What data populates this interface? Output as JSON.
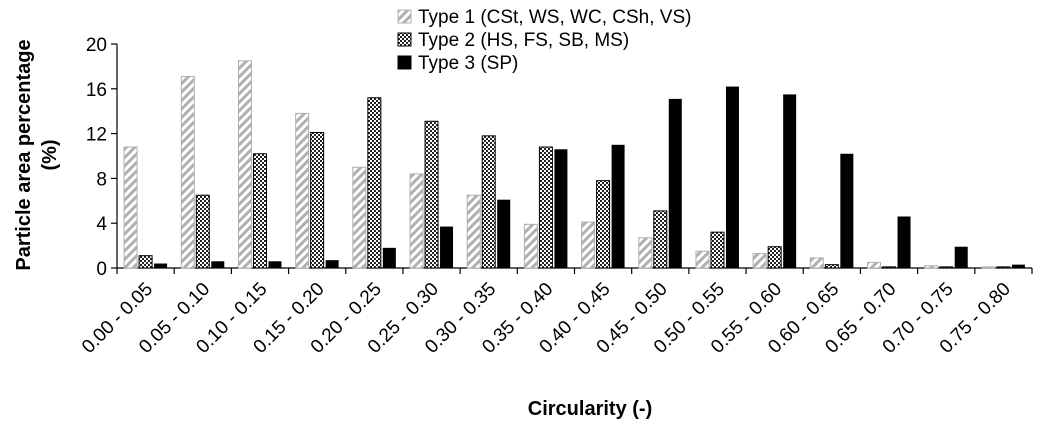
{
  "chart_data": {
    "type": "bar",
    "title": "",
    "xlabel": "Circularity (-)",
    "ylabel_line1": "Particle area percentage",
    "ylabel_line2": "(%)",
    "ylim": [
      0,
      20
    ],
    "yticks": [
      "0",
      "4",
      "8",
      "12",
      "16",
      "20"
    ],
    "ytick_values": [
      0,
      4,
      8,
      12,
      16,
      20
    ],
    "grid": false,
    "legend_position": "top-center",
    "categories": [
      "0.00 - 0.05",
      "0.05 - 0.10",
      "0.10 - 0.15",
      "0.15 - 0.20",
      "0.20 - 0.25",
      "0.25 - 0.30",
      "0.30 - 0.35",
      "0.35 - 0.40",
      "0.40 - 0.45",
      "0.45 - 0.50",
      "0.50 - 0.55",
      "0.55 - 0.60",
      "0.60 - 0.65",
      "0.65 - 0.70",
      "0.70 - 0.75",
      "0.75 - 0.80"
    ],
    "series": [
      {
        "name": "Type 1 (CSt, WS, WC, CSh, VS)",
        "pattern": "diagonal-hatch",
        "color": "#b0b0b0",
        "values": [
          10.8,
          17.1,
          18.5,
          13.8,
          9.0,
          8.4,
          6.5,
          3.9,
          4.1,
          2.7,
          1.5,
          1.3,
          0.9,
          0.5,
          0.2,
          0.1
        ]
      },
      {
        "name": "Type 2 (HS, FS, SB, MS)",
        "pattern": "dotted",
        "color": "#333333",
        "values": [
          1.1,
          6.5,
          10.2,
          12.1,
          15.2,
          13.1,
          11.8,
          10.8,
          7.8,
          5.1,
          3.2,
          1.9,
          0.3,
          0.1,
          0.1,
          0.1
        ]
      },
      {
        "name": "Type 3 (SP)",
        "pattern": "solid",
        "color": "#000000",
        "values": [
          0.4,
          0.6,
          0.6,
          0.7,
          1.8,
          3.7,
          6.1,
          10.6,
          11.0,
          15.1,
          16.2,
          15.5,
          10.2,
          4.6,
          1.9,
          0.3
        ]
      }
    ]
  }
}
